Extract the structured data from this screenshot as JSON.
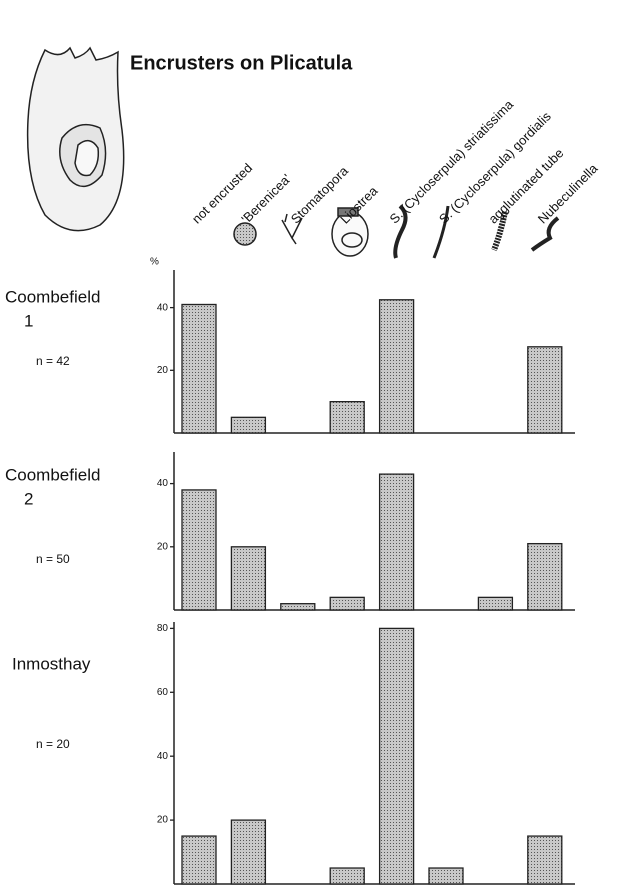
{
  "chart_data": {
    "type": "bar",
    "title": "Encrusters on Plicatula",
    "categories": [
      "not encrusted",
      "'Berenicea'",
      "Stomatopora",
      "Liostrea",
      "S. (Cycloserpula) striatissima",
      "S. (Cycloserpula) gordialis",
      "agglutinated tube",
      "Nubeculinella"
    ],
    "color": "#b8b8b8",
    "panels": [
      {
        "label": [
          "Coombefield",
          "1"
        ],
        "n": "n = 42",
        "unit": "%",
        "ylim": [
          0,
          52
        ],
        "yticks": [
          20,
          40
        ],
        "values": [
          41,
          5,
          0,
          10,
          42.5,
          0,
          0,
          27.5
        ]
      },
      {
        "label": [
          "Coombefield",
          "2"
        ],
        "n": "n = 50",
        "ylim": [
          0,
          50
        ],
        "yticks": [
          20,
          40
        ],
        "values": [
          38,
          20,
          2,
          4,
          43,
          0,
          4,
          21
        ]
      },
      {
        "label": [
          "Inmosthay"
        ],
        "n": "n = 20",
        "ylim": [
          0,
          82
        ],
        "yticks": [
          20,
          40,
          60,
          80
        ],
        "values": [
          15,
          20,
          0,
          5,
          80,
          5,
          0,
          15
        ]
      }
    ]
  }
}
